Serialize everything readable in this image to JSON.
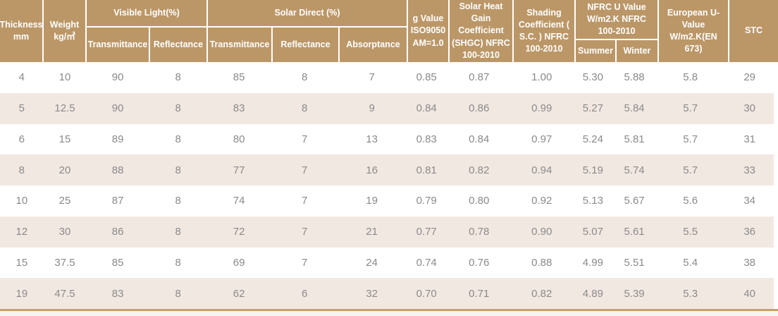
{
  "header": {
    "thickness": "Thickness mm",
    "weight": "Weight kg/㎡",
    "visible_light": {
      "label": "Visible Light(%)",
      "transmittance": "Transmittance",
      "reflectance": "Reflectance"
    },
    "solar_direct": {
      "label": "Solar Direct (%)",
      "transmittance": "Transmittance",
      "reflectance": "Reflectance",
      "absorptance": "Absorptance"
    },
    "g_value": "g Value ISO9050 AM=1.0",
    "shgc": "Solar Heat Gain Coefficient (SHGC) NFRC 100-2010",
    "shading": "Shading Coefficient ( S.C. ) NFRC 100-2010",
    "nfrc_u": {
      "label": "NFRC U Value W/m2.K NFRC 100-2010",
      "summer": "Summer",
      "winter": "Winter"
    },
    "european_u": "European U-Value W/m2.K(EN 673)",
    "stc": "STC"
  },
  "rows": [
    [
      "4",
      "10",
      "90",
      "8",
      "85",
      "8",
      "7",
      "0.85",
      "0.87",
      "1.00",
      "5.30",
      "5.88",
      "5.8",
      "29"
    ],
    [
      "5",
      "12.5",
      "90",
      "8",
      "83",
      "8",
      "9",
      "0.84",
      "0.86",
      "0.99",
      "5.27",
      "5.84",
      "5.7",
      "30"
    ],
    [
      "6",
      "15",
      "89",
      "8",
      "80",
      "7",
      "13",
      "0.83",
      "0.84",
      "0.97",
      "5.24",
      "5.81",
      "5.7",
      "31"
    ],
    [
      "8",
      "20",
      "88",
      "8",
      "77",
      "7",
      "16",
      "0.81",
      "0.82",
      "0.94",
      "5.19",
      "5.74",
      "5.7",
      "33"
    ],
    [
      "10",
      "25",
      "87",
      "8",
      "74",
      "7",
      "19",
      "0.79",
      "0.80",
      "0.92",
      "5.13",
      "5.67",
      "5.6",
      "34"
    ],
    [
      "12",
      "30",
      "86",
      "8",
      "72",
      "7",
      "21",
      "0.77",
      "0.78",
      "0.90",
      "5.07",
      "5.61",
      "5.5",
      "36"
    ],
    [
      "15",
      "37.5",
      "85",
      "8",
      "69",
      "7",
      "24",
      "0.74",
      "0.76",
      "0.88",
      "4.99",
      "5.51",
      "5.4",
      "38"
    ],
    [
      "19",
      "47.5",
      "83",
      "8",
      "62",
      "6",
      "32",
      "0.70",
      "0.71",
      "0.82",
      "4.89",
      "5.39",
      "5.3",
      "40"
    ]
  ],
  "colors": {
    "header_bg": "#bb9768",
    "header_text": "#ffffff",
    "row_alt_bg": "#f2e8e2",
    "body_text": "#8a8a8a",
    "bottom_line": "#c8a165",
    "bottom_strip": "#f7f5f2"
  },
  "chart_data": {
    "type": "table",
    "title": "Clear float glass performance data table",
    "columns": [
      "Thickness mm",
      "Weight kg/㎡",
      "Visible Light(%) Transmittance",
      "Visible Light(%) Reflectance",
      "Solar Direct (%) Transmittance",
      "Solar Direct (%) Reflectance",
      "Solar Direct (%) Absorptance",
      "g Value ISO9050 AM=1.0",
      "Solar Heat Gain Coefficient (SHGC) NFRC 100-2010",
      "Shading Coefficient ( S.C. ) NFRC 100-2010",
      "NFRC U Value W/m2.K NFRC 100-2010 Summer",
      "NFRC U Value W/m2.K NFRC 100-2010 Winter",
      "European U-Value W/m2.K(EN 673)",
      "STC"
    ],
    "rows": [
      [
        4,
        10,
        90,
        8,
        85,
        8,
        7,
        0.85,
        0.87,
        1.0,
        5.3,
        5.88,
        5.8,
        29
      ],
      [
        5,
        12.5,
        90,
        8,
        83,
        8,
        9,
        0.84,
        0.86,
        0.99,
        5.27,
        5.84,
        5.7,
        30
      ],
      [
        6,
        15,
        89,
        8,
        80,
        7,
        13,
        0.83,
        0.84,
        0.97,
        5.24,
        5.81,
        5.7,
        31
      ],
      [
        8,
        20,
        88,
        8,
        77,
        7,
        16,
        0.81,
        0.82,
        0.94,
        5.19,
        5.74,
        5.7,
        33
      ],
      [
        10,
        25,
        87,
        8,
        74,
        7,
        19,
        0.79,
        0.8,
        0.92,
        5.13,
        5.67,
        5.6,
        34
      ],
      [
        12,
        30,
        86,
        8,
        72,
        7,
        21,
        0.77,
        0.78,
        0.9,
        5.07,
        5.61,
        5.5,
        36
      ],
      [
        15,
        37.5,
        85,
        8,
        69,
        7,
        24,
        0.74,
        0.76,
        0.88,
        4.99,
        5.51,
        5.4,
        38
      ],
      [
        19,
        47.5,
        83,
        8,
        62,
        6,
        32,
        0.7,
        0.71,
        0.82,
        4.89,
        5.39,
        5.3,
        40
      ]
    ]
  }
}
